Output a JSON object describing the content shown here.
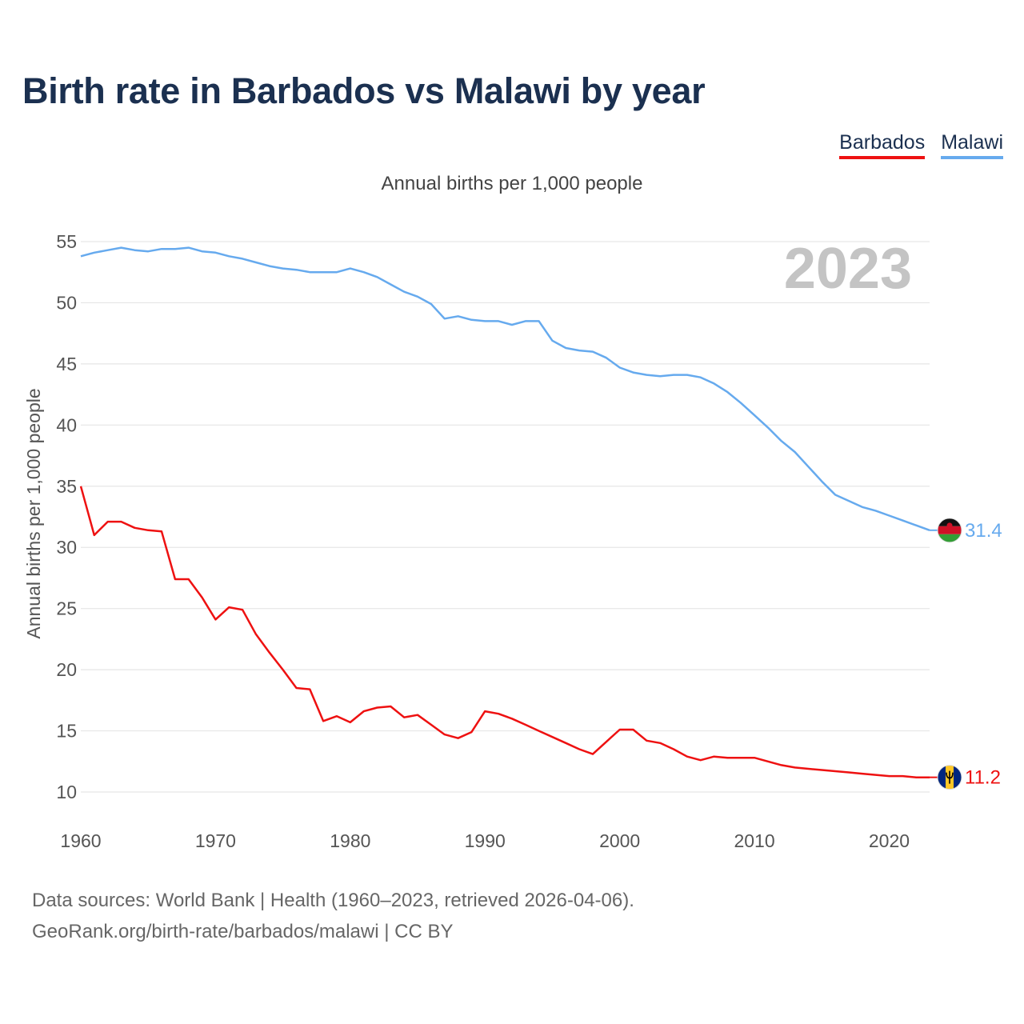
{
  "title": "Birth rate in Barbados vs Malawi by year",
  "subtitle": "Annual births per 1,000 people",
  "legend": [
    {
      "name": "Barbados",
      "color": "#ee1111"
    },
    {
      "name": "Malawi",
      "color": "#66aaee"
    }
  ],
  "year_watermark": "2023",
  "footer": {
    "line1": "Data sources: World Bank | Health (1960–2023, retrieved 2026-04-06).",
    "line2": "GeoRank.org/birth-rate/barbados/malawi | CC BY"
  },
  "chart_data": {
    "type": "line",
    "title": "Birth rate in Barbados vs Malawi by year",
    "xlabel": "",
    "ylabel": "Annual births per 1,000 people",
    "xlim": [
      1960,
      2023
    ],
    "ylim": [
      10,
      55
    ],
    "x_ticks": [
      1960,
      1970,
      1980,
      1990,
      2000,
      2010,
      2020
    ],
    "y_ticks": [
      10,
      15,
      20,
      25,
      30,
      35,
      40,
      45,
      50,
      55
    ],
    "grid": true,
    "legend_position": "top-right",
    "x": [
      1960,
      1961,
      1962,
      1963,
      1964,
      1965,
      1966,
      1967,
      1968,
      1969,
      1970,
      1971,
      1972,
      1973,
      1974,
      1975,
      1976,
      1977,
      1978,
      1979,
      1980,
      1981,
      1982,
      1983,
      1984,
      1985,
      1986,
      1987,
      1988,
      1989,
      1990,
      1991,
      1992,
      1993,
      1994,
      1995,
      1996,
      1997,
      1998,
      1999,
      2000,
      2001,
      2002,
      2003,
      2004,
      2005,
      2006,
      2007,
      2008,
      2009,
      2010,
      2011,
      2012,
      2013,
      2014,
      2015,
      2016,
      2017,
      2018,
      2019,
      2020,
      2021,
      2022,
      2023
    ],
    "series": [
      {
        "name": "Barbados",
        "color": "#ee1111",
        "end_label": "11.2",
        "values": [
          35.0,
          31.0,
          32.1,
          32.1,
          31.6,
          31.4,
          31.3,
          27.4,
          27.4,
          25.9,
          24.1,
          25.1,
          24.9,
          22.9,
          21.4,
          20.0,
          18.5,
          18.4,
          15.8,
          16.2,
          15.7,
          16.6,
          16.9,
          17.0,
          16.1,
          16.3,
          15.5,
          14.7,
          14.4,
          14.9,
          16.6,
          16.4,
          16.0,
          15.5,
          15.0,
          14.5,
          14.0,
          13.5,
          13.1,
          14.1,
          15.1,
          15.1,
          14.2,
          14.0,
          13.5,
          12.9,
          12.6,
          12.9,
          12.8,
          12.8,
          12.8,
          12.5,
          12.2,
          12.0,
          11.9,
          11.8,
          11.7,
          11.6,
          11.5,
          11.4,
          11.3,
          11.3,
          11.2,
          11.2
        ]
      },
      {
        "name": "Malawi",
        "color": "#66aaee",
        "end_label": "31.4",
        "values": [
          53.8,
          54.1,
          54.3,
          54.5,
          54.3,
          54.2,
          54.4,
          54.4,
          54.5,
          54.2,
          54.1,
          53.8,
          53.6,
          53.3,
          53.0,
          52.8,
          52.7,
          52.5,
          52.5,
          52.5,
          52.8,
          52.5,
          52.1,
          51.5,
          50.9,
          50.5,
          49.9,
          48.7,
          48.9,
          48.6,
          48.5,
          48.5,
          48.2,
          48.5,
          48.5,
          46.9,
          46.3,
          46.1,
          46.0,
          45.5,
          44.7,
          44.3,
          44.1,
          44.0,
          44.1,
          44.1,
          43.9,
          43.4,
          42.7,
          41.8,
          40.8,
          39.8,
          38.7,
          37.8,
          36.6,
          35.4,
          34.3,
          33.8,
          33.3,
          33.0,
          32.6,
          32.2,
          31.8,
          31.4
        ]
      }
    ]
  }
}
